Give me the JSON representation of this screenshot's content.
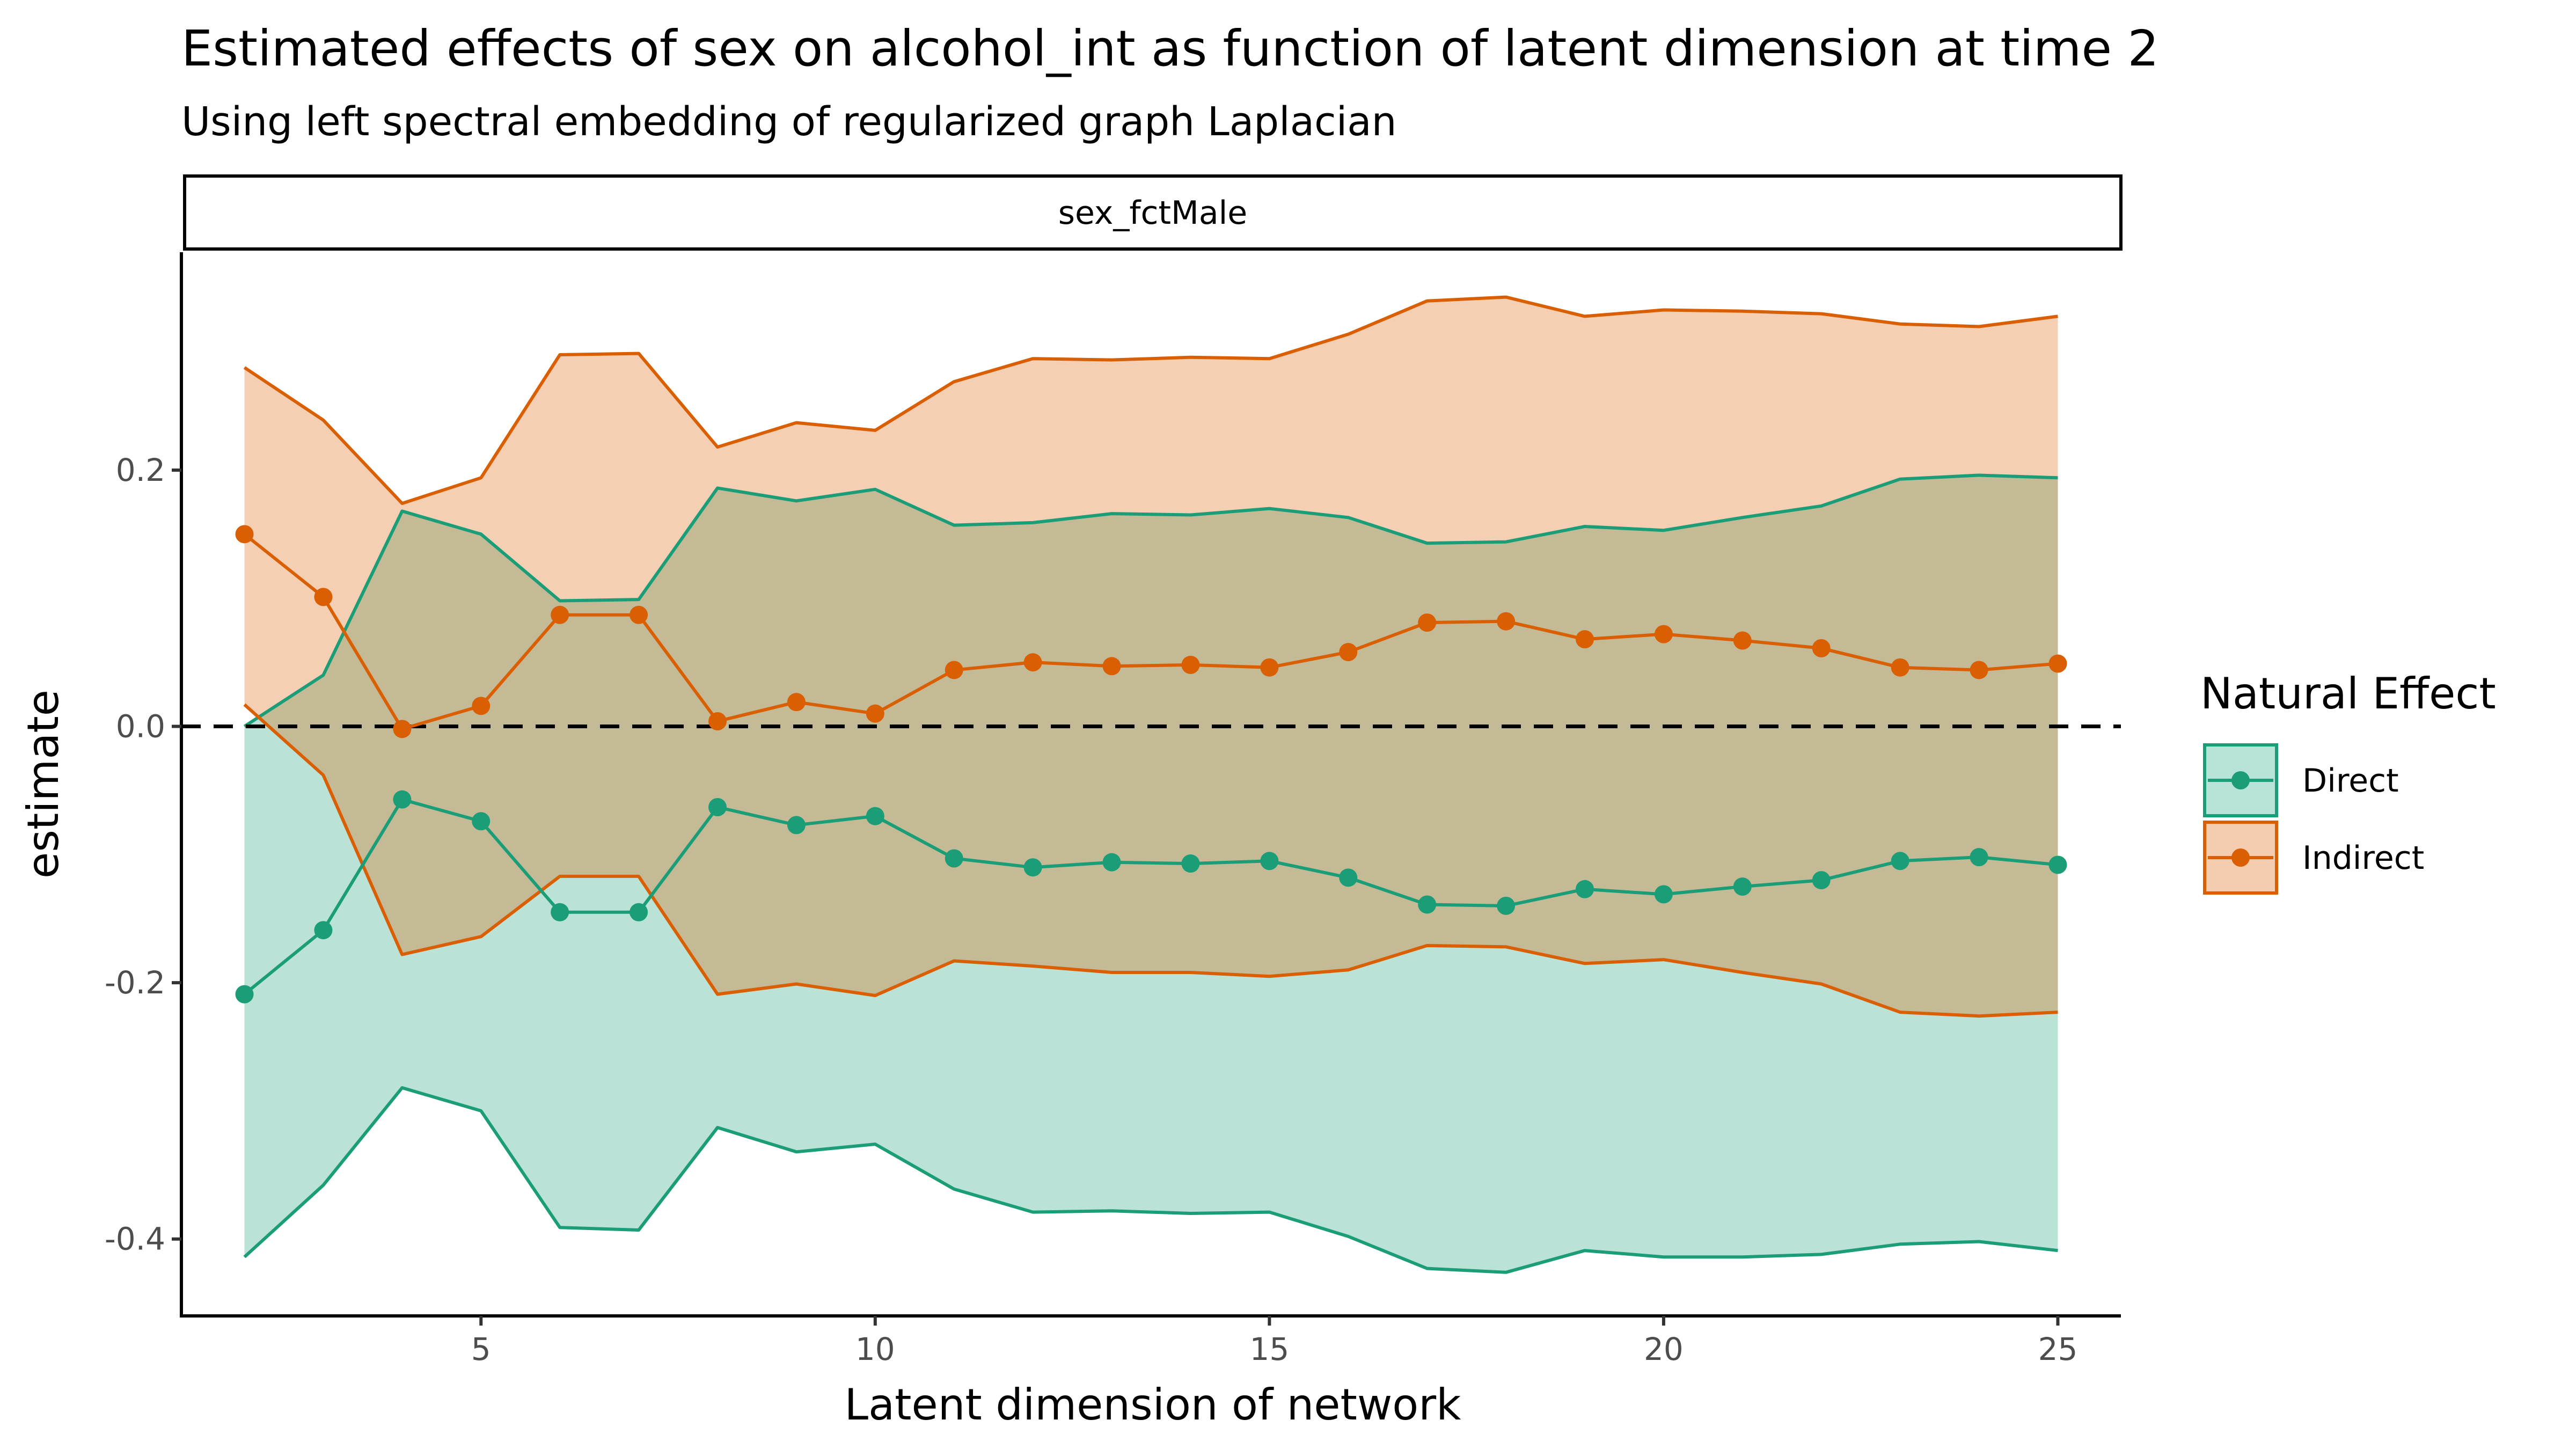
{
  "title": "Estimated effects of sex on alcohol_int as function of latent dimension at time 2",
  "subtitle": "Using left spectral embedding of  regularized graph Laplacian",
  "chart_data": {
    "type": "line",
    "facet_label": "sex_fctMale",
    "xlabel": "Latent dimension of network",
    "ylabel": "estimate",
    "xlim": [
      1.2,
      25.8
    ],
    "ylim": [
      -0.46,
      0.37
    ],
    "x_ticks": [
      5,
      10,
      15,
      20,
      25
    ],
    "x_tick_labels": [
      "5",
      "10",
      "15",
      "20",
      "25"
    ],
    "y_ticks": [
      0.2,
      0.0,
      -0.2,
      -0.4
    ],
    "y_tick_labels": [
      "0.2",
      "0.0",
      "-0.2",
      "-0.4"
    ],
    "reference_line": 0,
    "legend": {
      "title": "Natural Effect",
      "position": "right"
    },
    "x": [
      2,
      3,
      4,
      5,
      6,
      7,
      8,
      9,
      10,
      11,
      12,
      13,
      14,
      15,
      16,
      17,
      18,
      19,
      20,
      21,
      22,
      23,
      24,
      25
    ],
    "series": [
      {
        "name": "Direct",
        "color": "#1b9e77",
        "fill": "#b9e3d9",
        "estimate": [
          -0.209,
          -0.159,
          -0.057,
          -0.074,
          -0.145,
          -0.145,
          -0.063,
          -0.077,
          -0.07,
          -0.103,
          -0.11,
          -0.106,
          -0.107,
          -0.105,
          -0.118,
          -0.139,
          -0.14,
          -0.127,
          -0.131,
          -0.125,
          -0.12,
          -0.105,
          -0.102,
          -0.108
        ],
        "lower": [
          -0.414,
          -0.358,
          -0.282,
          -0.3,
          -0.391,
          -0.393,
          -0.313,
          -0.332,
          -0.326,
          -0.361,
          -0.379,
          -0.378,
          -0.38,
          -0.379,
          -0.398,
          -0.423,
          -0.426,
          -0.409,
          -0.414,
          -0.414,
          -0.412,
          -0.404,
          -0.402,
          -0.409
        ],
        "upper": [
          0.0,
          0.04,
          0.168,
          0.15,
          0.098,
          0.099,
          0.186,
          0.176,
          0.185,
          0.157,
          0.159,
          0.166,
          0.165,
          0.17,
          0.163,
          0.143,
          0.144,
          0.156,
          0.153,
          0.163,
          0.172,
          0.193,
          0.196,
          0.194
        ]
      },
      {
        "name": "Indirect",
        "color": "#d95f02",
        "fill": "#f4cdb0",
        "estimate": [
          0.15,
          0.101,
          -0.002,
          0.016,
          0.087,
          0.087,
          0.004,
          0.019,
          0.01,
          0.044,
          0.05,
          0.047,
          0.048,
          0.046,
          0.058,
          0.081,
          0.082,
          0.068,
          0.072,
          0.067,
          0.061,
          0.046,
          0.044,
          0.049
        ],
        "lower": [
          0.017,
          -0.038,
          -0.178,
          -0.164,
          -0.117,
          -0.117,
          -0.209,
          -0.201,
          -0.21,
          -0.183,
          -0.187,
          -0.192,
          -0.192,
          -0.195,
          -0.19,
          -0.171,
          -0.172,
          -0.185,
          -0.182,
          -0.192,
          -0.201,
          -0.223,
          -0.226,
          -0.223
        ],
        "upper": [
          0.28,
          0.239,
          0.174,
          0.194,
          0.29,
          0.291,
          0.218,
          0.237,
          0.231,
          0.269,
          0.287,
          0.286,
          0.288,
          0.287,
          0.306,
          0.332,
          0.335,
          0.32,
          0.325,
          0.324,
          0.322,
          0.314,
          0.312,
          0.32
        ]
      }
    ]
  }
}
